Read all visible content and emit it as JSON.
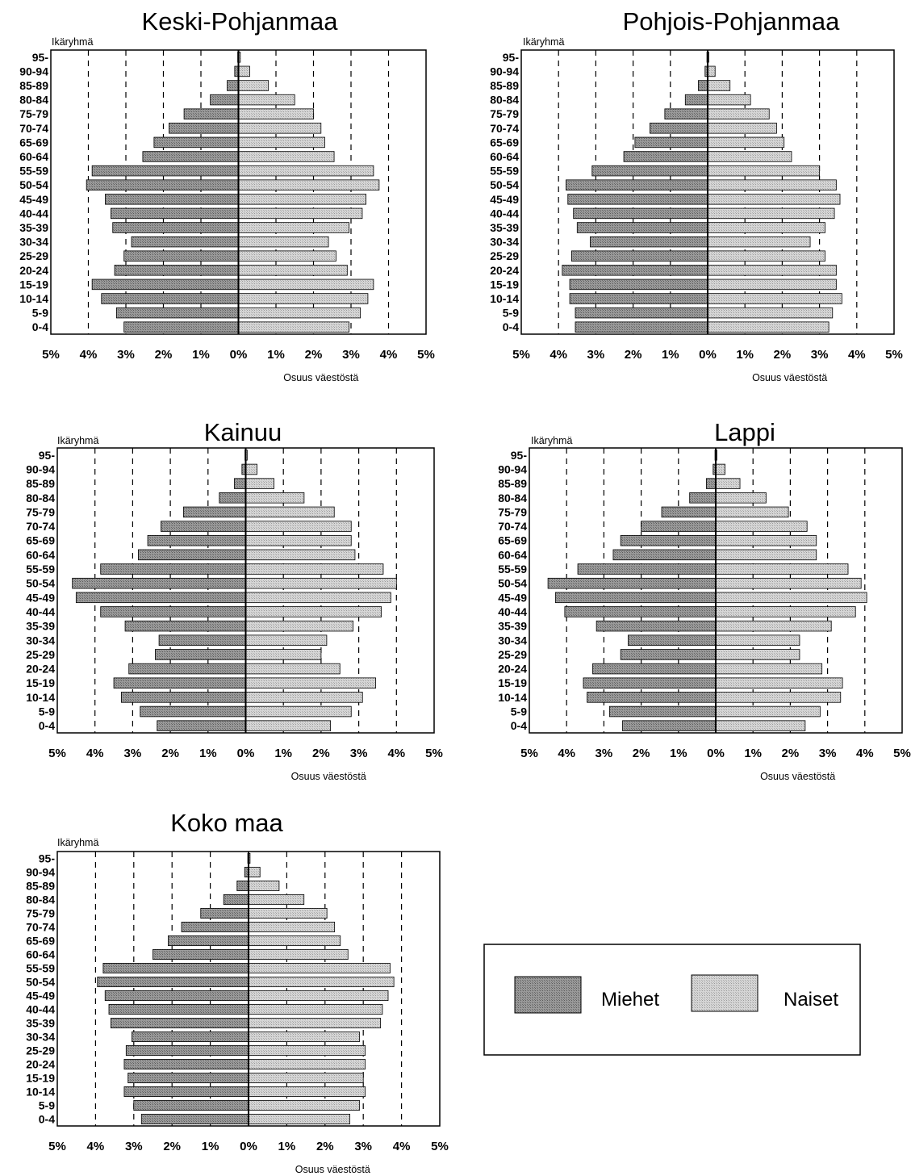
{
  "colors": {
    "men": "#909090",
    "women": "#cccccc",
    "stroke": "#000000"
  },
  "chart_data": [
    {
      "type": "bar",
      "title": "Keski-Pohjanmaa",
      "ylabel": "Ikäryhmä",
      "xlabel": "Osuus väestöstä",
      "xlim": [
        -5,
        5
      ],
      "xticks": [
        "5%",
        "4%",
        "3%",
        "2%",
        "1%",
        "0%",
        "1%",
        "2%",
        "3%",
        "4%",
        "5%"
      ],
      "categories": [
        "95-",
        "90-94",
        "85-89",
        "80-84",
        "75-79",
        "70-74",
        "65-69",
        "60-64",
        "55-59",
        "50-54",
        "45-49",
        "40-44",
        "35-39",
        "30-34",
        "25-29",
        "20-24",
        "15-19",
        "10-14",
        "5-9",
        "0-4"
      ],
      "series": [
        {
          "name": "Miehet",
          "values": [
            0.02,
            0.1,
            0.3,
            0.75,
            1.45,
            1.85,
            2.25,
            2.55,
            3.9,
            4.05,
            3.55,
            3.4,
            3.35,
            2.85,
            3.05,
            3.3,
            3.9,
            3.65,
            3.25,
            3.05
          ]
        },
        {
          "name": "Naiset",
          "values": [
            0.05,
            0.3,
            0.8,
            1.5,
            2.0,
            2.2,
            2.3,
            2.55,
            3.6,
            3.75,
            3.4,
            3.3,
            2.95,
            2.4,
            2.6,
            2.9,
            3.6,
            3.45,
            3.25,
            2.95
          ]
        }
      ]
    },
    {
      "type": "bar",
      "title": "Pohjois-Pohjanmaa",
      "ylabel": "Ikäryhmä",
      "xlabel": "Osuus väestöstä",
      "xlim": [
        -5,
        5
      ],
      "xticks": [
        "5%",
        "4%",
        "3%",
        "2%",
        "1%",
        "0%",
        "1%",
        "2%",
        "3%",
        "4%",
        "5%"
      ],
      "categories": [
        "95-",
        "90-94",
        "85-89",
        "80-84",
        "75-79",
        "70-74",
        "65-69",
        "60-64",
        "55-59",
        "50-54",
        "45-49",
        "40-44",
        "35-39",
        "30-34",
        "25-29",
        "20-24",
        "15-19",
        "10-14",
        "5-9",
        "0-4"
      ],
      "series": [
        {
          "name": "Miehet",
          "values": [
            0.02,
            0.07,
            0.25,
            0.6,
            1.15,
            1.55,
            1.95,
            2.25,
            3.1,
            3.8,
            3.75,
            3.6,
            3.5,
            3.15,
            3.65,
            3.9,
            3.7,
            3.7,
            3.55,
            3.55
          ]
        },
        {
          "name": "Naiset",
          "values": [
            0.03,
            0.2,
            0.6,
            1.15,
            1.65,
            1.85,
            2.05,
            2.25,
            3.0,
            3.45,
            3.55,
            3.4,
            3.15,
            2.75,
            3.15,
            3.45,
            3.45,
            3.6,
            3.35,
            3.25
          ]
        }
      ]
    },
    {
      "type": "bar",
      "title": "Kainuu",
      "ylabel": "Ikäryhmä",
      "xlabel": "Osuus väestöstä",
      "xlim": [
        -5,
        5
      ],
      "xticks": [
        "5%",
        "4%",
        "3%",
        "2%",
        "1%",
        "0%",
        "1%",
        "2%",
        "3%",
        "4%",
        "5%"
      ],
      "categories": [
        "95-",
        "90-94",
        "85-89",
        "80-84",
        "75-79",
        "70-74",
        "65-69",
        "60-64",
        "55-59",
        "50-54",
        "45-49",
        "40-44",
        "35-39",
        "30-34",
        "25-29",
        "20-24",
        "15-19",
        "10-14",
        "5-9",
        "0-4"
      ],
      "series": [
        {
          "name": "Miehet",
          "values": [
            0.02,
            0.1,
            0.3,
            0.7,
            1.65,
            2.25,
            2.6,
            2.85,
            3.85,
            4.6,
            4.5,
            3.85,
            3.2,
            2.3,
            2.4,
            3.1,
            3.5,
            3.3,
            2.8,
            2.35
          ]
        },
        {
          "name": "Naiset",
          "values": [
            0.04,
            0.3,
            0.75,
            1.55,
            2.35,
            2.8,
            2.8,
            2.9,
            3.65,
            4.0,
            3.85,
            3.6,
            2.85,
            2.15,
            2.0,
            2.5,
            3.45,
            3.1,
            2.8,
            2.25
          ]
        }
      ]
    },
    {
      "type": "bar",
      "title": "Lappi",
      "ylabel": "Ikäryhmä",
      "xlabel": "Osuus väestöstä",
      "xlim": [
        -5,
        5
      ],
      "xticks": [
        "5%",
        "4%",
        "3%",
        "2%",
        "1%",
        "0%",
        "1%",
        "2%",
        "3%",
        "4%",
        "5%"
      ],
      "categories": [
        "95-",
        "90-94",
        "85-89",
        "80-84",
        "75-79",
        "70-74",
        "65-69",
        "60-64",
        "55-59",
        "50-54",
        "45-49",
        "40-44",
        "35-39",
        "30-34",
        "25-29",
        "20-24",
        "15-19",
        "10-14",
        "5-9",
        "0-4"
      ],
      "series": [
        {
          "name": "Miehet",
          "values": [
            0.02,
            0.07,
            0.25,
            0.7,
            1.45,
            2.0,
            2.55,
            2.75,
            3.7,
            4.5,
            4.3,
            4.05,
            3.2,
            2.35,
            2.55,
            3.3,
            3.55,
            3.45,
            2.85,
            2.5
          ]
        },
        {
          "name": "Naiset",
          "values": [
            0.03,
            0.25,
            0.65,
            1.35,
            1.95,
            2.45,
            2.7,
            2.7,
            3.55,
            3.9,
            4.05,
            3.75,
            3.1,
            2.25,
            2.25,
            2.85,
            3.4,
            3.35,
            2.8,
            2.4
          ]
        }
      ]
    },
    {
      "type": "bar",
      "title": "Koko maa",
      "ylabel": "Ikäryhmä",
      "xlabel": "Osuus väestöstä",
      "xlim": [
        -5,
        5
      ],
      "xticks": [
        "5%",
        "4%",
        "3%",
        "2%",
        "1%",
        "0%",
        "1%",
        "2%",
        "3%",
        "4%",
        "5%"
      ],
      "categories": [
        "95-",
        "90-94",
        "85-89",
        "80-84",
        "75-79",
        "70-74",
        "65-69",
        "60-64",
        "55-59",
        "50-54",
        "45-49",
        "40-44",
        "35-39",
        "30-34",
        "25-29",
        "20-24",
        "15-19",
        "10-14",
        "5-9",
        "0-4"
      ],
      "series": [
        {
          "name": "Miehet",
          "values": [
            0.02,
            0.1,
            0.3,
            0.65,
            1.25,
            1.75,
            2.1,
            2.5,
            3.8,
            3.95,
            3.75,
            3.65,
            3.6,
            3.05,
            3.2,
            3.25,
            3.15,
            3.25,
            3.0,
            2.8
          ]
        },
        {
          "name": "Naiset",
          "values": [
            0.04,
            0.3,
            0.8,
            1.45,
            2.05,
            2.25,
            2.4,
            2.6,
            3.7,
            3.8,
            3.65,
            3.5,
            3.45,
            2.9,
            3.05,
            3.05,
            3.0,
            3.05,
            2.9,
            2.65
          ]
        }
      ]
    }
  ],
  "legend": {
    "men_label": "Miehet",
    "women_label": "Naiset"
  }
}
